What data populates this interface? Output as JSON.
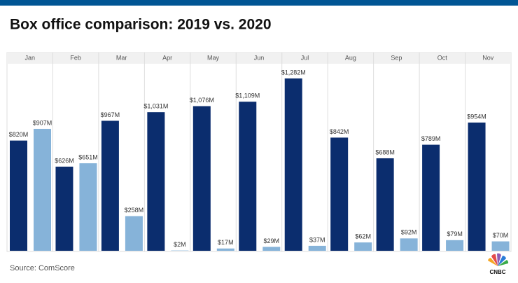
{
  "chart_data": {
    "type": "bar",
    "title": "Box office comparison: 2019 vs. 2020",
    "categories": [
      "Jan",
      "Feb",
      "Mar",
      "Apr",
      "May",
      "Jun",
      "Jul",
      "Aug",
      "Sep",
      "Oct",
      "Nov"
    ],
    "series": [
      {
        "color": "#0b2d6e",
        "values": [
          820,
          626,
          967,
          1031,
          1076,
          1109,
          1282,
          842,
          688,
          789,
          954
        ],
        "value_labels": [
          "$820M",
          "$626M",
          "$967M",
          "$1,031M",
          "$1,076M",
          "$1,109M",
          "$1,282M",
          "$842M",
          "$688M",
          "$789M",
          "$954M"
        ]
      },
      {
        "color": "#86b3d9",
        "values": [
          907,
          651,
          258,
          2,
          17,
          29,
          37,
          62,
          92,
          79,
          70
        ],
        "value_labels": [
          "$907M",
          "$651M",
          "$258M",
          "$2M",
          "$17M",
          "$29M",
          "$37M",
          "$62M",
          "$92M",
          "$79M",
          "$70M"
        ]
      }
    ],
    "source": "Source: ComScore",
    "logo": "CNBC"
  }
}
